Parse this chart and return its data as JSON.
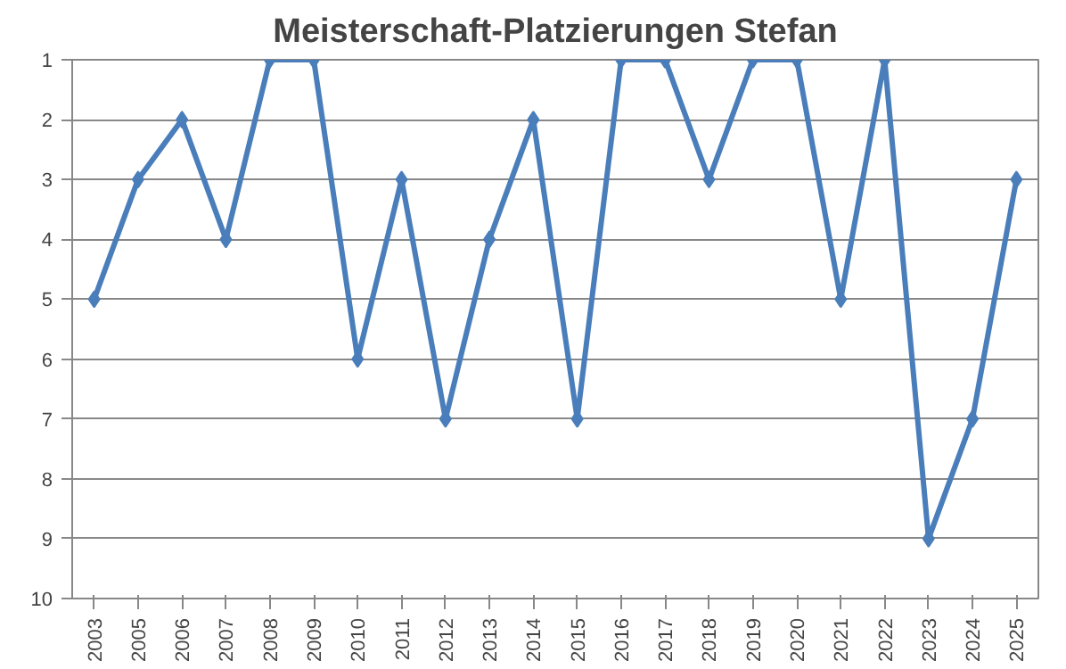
{
  "chart_data": {
    "type": "line",
    "title": "Meisterschaft-Platzierungen Stefan",
    "categories": [
      "2003",
      "2005",
      "2006",
      "2007",
      "2008",
      "2009",
      "2010",
      "2011",
      "2012",
      "2013",
      "2014",
      "2015",
      "2016",
      "2017",
      "2018",
      "2019",
      "2020",
      "2021",
      "2022",
      "2023",
      "2024",
      "2025"
    ],
    "series": [
      {
        "color": "#4a7ebb",
        "values": [
          5,
          3,
          2,
          4,
          1,
          1,
          6,
          3,
          7,
          4,
          2,
          7,
          1,
          1,
          3,
          1,
          1,
          5,
          1,
          9,
          7,
          3
        ]
      }
    ],
    "ylim": [
      10,
      1
    ],
    "yticks": [
      1,
      2,
      3,
      4,
      5,
      6,
      7,
      8,
      9,
      10
    ],
    "grid": "y",
    "marker": "diamond",
    "line_style": "solid"
  }
}
